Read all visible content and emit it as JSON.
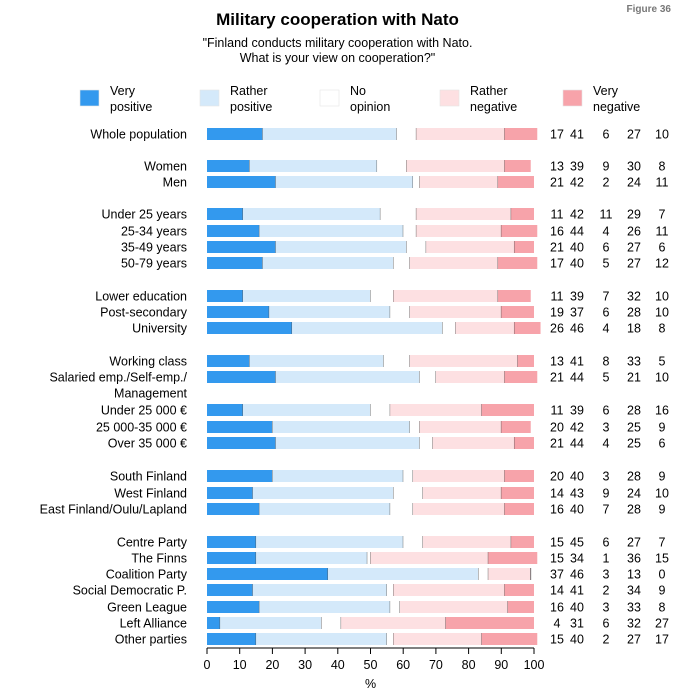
{
  "figure_label": "Figure 36",
  "chart_data": {
    "type": "bar",
    "stacked": true,
    "orientation": "horizontal",
    "title": "Military cooperation with Nato",
    "subtitle": "\"Finland conducts military cooperation with Nato.\nWhat is your view on cooperation?\"",
    "xlabel": "%",
    "xlim": [
      0,
      100
    ],
    "xticks": [
      0,
      10,
      20,
      30,
      40,
      50,
      60,
      70,
      80,
      90,
      100
    ],
    "series": [
      {
        "name": "Very positive",
        "legend_lines": [
          "Very",
          "positive"
        ],
        "color": "#3399ee"
      },
      {
        "name": "Rather positive",
        "legend_lines": [
          "Rather",
          "positive"
        ],
        "color": "#d4e9fa"
      },
      {
        "name": "No opinion",
        "legend_lines": [
          "No",
          "opinion"
        ],
        "color": "#ffffff"
      },
      {
        "name": "Rather negative",
        "legend_lines": [
          "Rather",
          "negative"
        ],
        "color": "#fde0e2"
      },
      {
        "name": "Very negative",
        "legend_lines": [
          "Very",
          "negative"
        ],
        "color": "#f7a3aa"
      }
    ],
    "groups": [
      [
        {
          "label": [
            "Whole population"
          ],
          "values": [
            17,
            41,
            6,
            27,
            10
          ]
        }
      ],
      [
        {
          "label": [
            "Women"
          ],
          "values": [
            13,
            39,
            9,
            30,
            8
          ]
        },
        {
          "label": [
            "Men"
          ],
          "values": [
            21,
            42,
            2,
            24,
            11
          ]
        }
      ],
      [
        {
          "label": [
            "Under 25 years"
          ],
          "values": [
            11,
            42,
            11,
            29,
            7
          ]
        },
        {
          "label": [
            "25-34 years"
          ],
          "values": [
            16,
            44,
            4,
            26,
            11
          ]
        },
        {
          "label": [
            "35-49 years"
          ],
          "values": [
            21,
            40,
            6,
            27,
            6
          ]
        },
        {
          "label": [
            "50-79 years"
          ],
          "values": [
            17,
            40,
            5,
            27,
            12
          ]
        }
      ],
      [
        {
          "label": [
            "Lower education"
          ],
          "values": [
            11,
            39,
            7,
            32,
            10
          ]
        },
        {
          "label": [
            "Post-secondary"
          ],
          "values": [
            19,
            37,
            6,
            28,
            10
          ]
        },
        {
          "label": [
            "University"
          ],
          "values": [
            26,
            46,
            4,
            18,
            8
          ]
        }
      ],
      [
        {
          "label": [
            "Working class"
          ],
          "values": [
            13,
            41,
            8,
            33,
            5
          ]
        },
        {
          "label": [
            "Salaried emp./Self-emp./",
            "Management"
          ],
          "values": [
            21,
            44,
            5,
            21,
            10
          ]
        },
        {
          "label": [
            "Under 25 000 €"
          ],
          "values": [
            11,
            39,
            6,
            28,
            16
          ]
        },
        {
          "label": [
            "25 000-35 000 €"
          ],
          "values": [
            20,
            42,
            3,
            25,
            9
          ]
        },
        {
          "label": [
            "Over 35 000 €"
          ],
          "values": [
            21,
            44,
            4,
            25,
            6
          ]
        }
      ],
      [
        {
          "label": [
            "South Finland"
          ],
          "values": [
            20,
            40,
            3,
            28,
            9
          ]
        },
        {
          "label": [
            "West Finland"
          ],
          "values": [
            14,
            43,
            9,
            24,
            10
          ]
        },
        {
          "label": [
            "East Finland/Oulu/Lapland"
          ],
          "values": [
            16,
            40,
            7,
            28,
            9
          ]
        }
      ],
      [
        {
          "label": [
            "Centre Party"
          ],
          "values": [
            15,
            45,
            6,
            27,
            7
          ]
        },
        {
          "label": [
            "The Finns"
          ],
          "values": [
            15,
            34,
            1,
            36,
            15
          ]
        },
        {
          "label": [
            "Coalition Party"
          ],
          "values": [
            37,
            46,
            3,
            13,
            0
          ]
        },
        {
          "label": [
            "Social Democratic P."
          ],
          "values": [
            14,
            41,
            2,
            34,
            9
          ]
        },
        {
          "label": [
            "Green League"
          ],
          "values": [
            16,
            40,
            3,
            33,
            8
          ]
        },
        {
          "label": [
            "Left Alliance"
          ],
          "values": [
            4,
            31,
            6,
            32,
            27
          ]
        },
        {
          "label": [
            "Other parties"
          ],
          "values": [
            15,
            40,
            2,
            27,
            17
          ]
        }
      ]
    ]
  }
}
